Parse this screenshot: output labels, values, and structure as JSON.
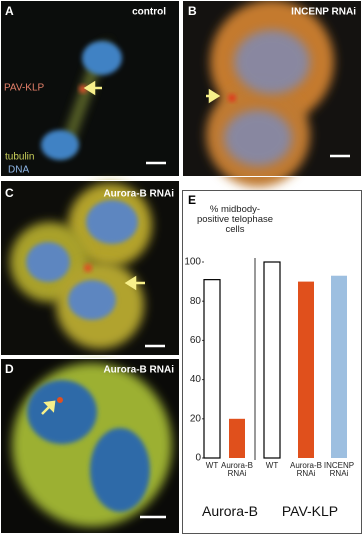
{
  "panels": [
    {
      "label": "A",
      "title": "control",
      "annotations": [
        "PAV-KLP",
        "tubulin",
        "DNA"
      ]
    },
    {
      "label": "B",
      "title": "INCENP RNAi"
    },
    {
      "label": "C",
      "title": "Aurora-B RNAi"
    },
    {
      "label": "D",
      "title": "Aurora-B RNAi"
    }
  ],
  "chart_data": {
    "type": "bar",
    "panel_label": "E",
    "ylabel": "% midbody-positive telophase cells",
    "ylim": [
      0,
      100
    ],
    "yticks": [
      0,
      20,
      40,
      60,
      80,
      100
    ],
    "groups": [
      {
        "name": "Aurora-B",
        "categories": [
          "WT",
          "Aurora-B RNAi"
        ],
        "values": [
          91,
          20
        ],
        "colors": [
          "#ffffff",
          "#e0501c"
        ]
      },
      {
        "name": "PAV-KLP",
        "categories": [
          "WT",
          "Aurora-B RNAi",
          "INCENP RNAi"
        ],
        "values": [
          100,
          90,
          93
        ],
        "colors": [
          "#ffffff",
          "#e0501c",
          "#9dbfe0"
        ]
      }
    ]
  }
}
